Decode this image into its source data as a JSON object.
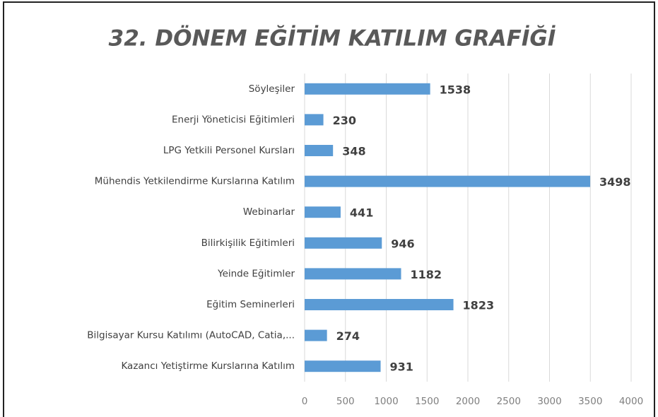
{
  "chart_data": {
    "type": "bar",
    "orientation": "horizontal",
    "title": "32. DÖNEM EĞİTİM KATILIM GRAFİĞİ",
    "categories": [
      "Söyleşiler",
      "Enerji Yöneticisi Eğitimleri",
      "LPG Yetkili Personel Kursları",
      "Mühendis Yetkilendirme Kurslarına Katılım",
      "Webinarlar",
      "Bilirkişilik Eğitimleri",
      "Yeinde Eğitimler",
      "Eğitim Seminerleri",
      "Bilgisayar Kursu Katılımı (AutoCAD,  Catia,...",
      "Kazancı Yetiştirme Kurslarına Katılım"
    ],
    "values": [
      1538,
      230,
      348,
      3498,
      441,
      946,
      1182,
      1823,
      274,
      931
    ],
    "color": "#5b9bd5",
    "xlim": [
      0,
      4000
    ],
    "xticks": [
      0,
      500,
      1000,
      1500,
      2000,
      2500,
      3000,
      3500,
      4000
    ],
    "grid": true
  }
}
